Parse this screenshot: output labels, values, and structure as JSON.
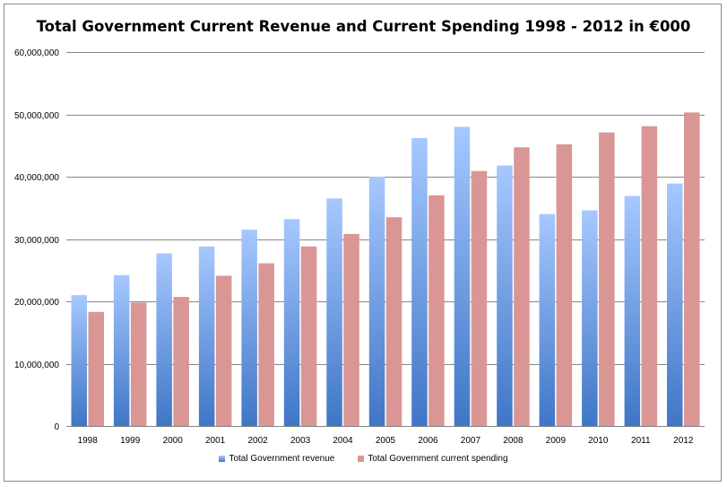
{
  "chart_data": {
    "type": "bar",
    "title": "Total Government Current Revenue and Current Spending 1998 - 2012 in €000",
    "xlabel": "",
    "ylabel": "",
    "categories": [
      "1998",
      "1999",
      "2000",
      "2001",
      "2002",
      "2003",
      "2004",
      "2005",
      "2006",
      "2007",
      "2008",
      "2009",
      "2010",
      "2011",
      "2012"
    ],
    "series": [
      {
        "name": "Total Government revenue",
        "color": "#4f81bd",
        "values": [
          21000000,
          24200000,
          27700000,
          28800000,
          31500000,
          33200000,
          36500000,
          40000000,
          46200000,
          48000000,
          41800000,
          34000000,
          34600000,
          36900000,
          38900000
        ]
      },
      {
        "name": "Total Government current spending",
        "color": "#d99694",
        "values": [
          18300000,
          19800000,
          20700000,
          24100000,
          26100000,
          28800000,
          30800000,
          33500000,
          37000000,
          40900000,
          44700000,
          45200000,
          47100000,
          48100000,
          50300000
        ]
      }
    ],
    "ylim": [
      0,
      60000000
    ],
    "yticks": [
      0,
      10000000,
      20000000,
      30000000,
      40000000,
      50000000,
      60000000
    ],
    "ytick_labels": [
      "0",
      "10,000,000",
      "20,000,000",
      "30,000,000",
      "40,000,000",
      "50,000,000",
      "60,000,000"
    ],
    "grid": true,
    "legend_position": "bottom"
  }
}
